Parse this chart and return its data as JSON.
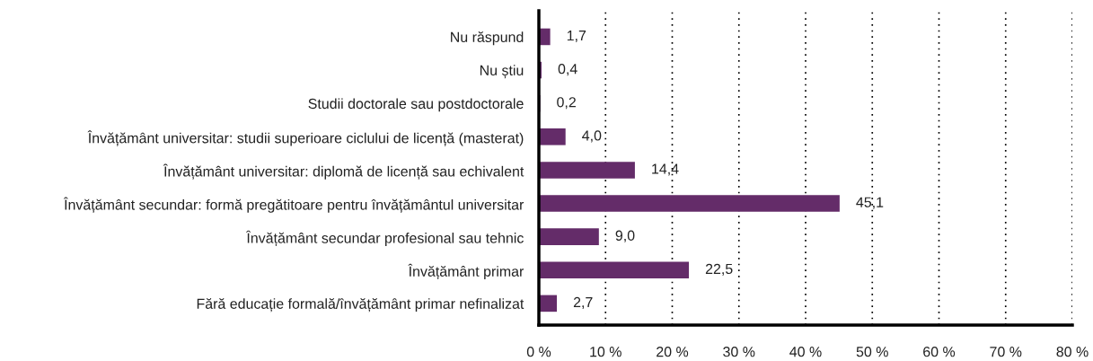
{
  "chart_data": {
    "type": "bar",
    "orientation": "horizontal",
    "categories": [
      "Nu răspund",
      "Nu știu",
      "Studii doctorale sau postdoctorale",
      "Învățământ universitar: studii superioare ciclului de licență (masterat)",
      "Învățământ universitar: diplomă de licență sau echivalent",
      "Învățământ secundar: formă pregătitoare pentru învățământul universitar",
      "Învățământ secundar profesional sau tehnic",
      "Învățământ primar",
      "Fără educație formală/învățământ primar nefinalizat"
    ],
    "values": [
      1.7,
      0.4,
      0.2,
      4.0,
      14.4,
      45.1,
      9.0,
      22.5,
      2.7
    ],
    "value_labels": [
      "1,7",
      "0,4",
      "0,2",
      "4,0",
      "14,4",
      "45,1",
      "9,0",
      "22,5",
      "2,7"
    ],
    "color": "#642c69",
    "xlim": [
      0,
      80
    ],
    "xticks": [
      {
        "value": 0,
        "label": "0 %"
      },
      {
        "value": 10,
        "label": "10 %"
      },
      {
        "value": 20,
        "label": "20 %"
      },
      {
        "value": 30,
        "label": "30 %"
      },
      {
        "value": 40,
        "label": "40 %"
      },
      {
        "value": 50,
        "label": "50 %"
      },
      {
        "value": 60,
        "label": "60 %"
      },
      {
        "value": 70,
        "label": "70 %"
      },
      {
        "value": 80,
        "label": "80 %"
      }
    ],
    "grid": "x"
  }
}
